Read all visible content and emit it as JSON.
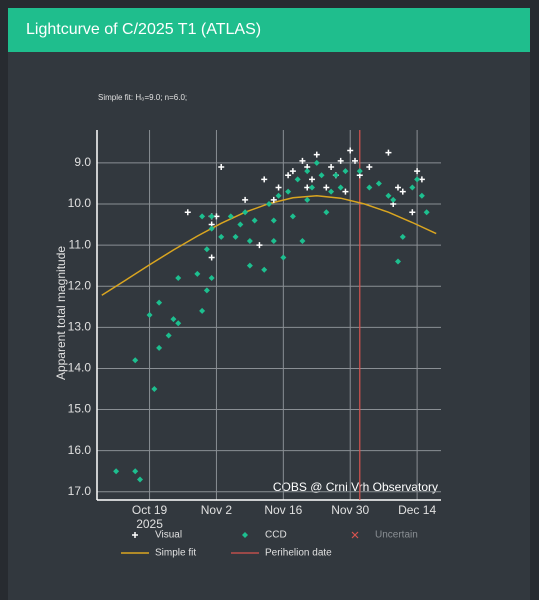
{
  "header": {
    "title": "Lightcurve of C/2025 T1 (ATLAS)"
  },
  "chart_data": {
    "type": "scatter",
    "annotation": "Simple fit: H₀=9.0; n=6.0;",
    "source_note": "COBS @ Crni Vrh Observatory",
    "y_label": "Apparent total magnitude",
    "xlim": [
      "2025-10-08",
      "2025-12-19"
    ],
    "xticks": [
      {
        "value": "2025-10-19",
        "label": "Oct 19"
      },
      {
        "value": "2025-11-02",
        "label": "Nov 2"
      },
      {
        "value": "2025-11-16",
        "label": "Nov 16"
      },
      {
        "value": "2025-11-30",
        "label": "Nov 30"
      },
      {
        "value": "2025-12-14",
        "label": "Dec 14"
      }
    ],
    "x_tick_year": "2025",
    "ylim": [
      17.2,
      8.2
    ],
    "yticks": [
      {
        "value": 9,
        "label": "9.0"
      },
      {
        "value": 10,
        "label": "10.0"
      },
      {
        "value": 11,
        "label": "11.0"
      },
      {
        "value": 12,
        "label": "12.0"
      },
      {
        "value": 13,
        "label": "13.0"
      },
      {
        "value": 14,
        "label": "14.0"
      },
      {
        "value": 15,
        "label": "15.0"
      },
      {
        "value": 16,
        "label": "16.0"
      },
      {
        "value": 17,
        "label": "17.0"
      }
    ],
    "grid": true,
    "series": [
      {
        "name": "Visual",
        "color": "#ffffff",
        "marker": "plus",
        "x": [
          "2025-10-27",
          "2025-11-01",
          "2025-11-01",
          "2025-11-02",
          "2025-11-03",
          "2025-11-01",
          "2025-11-08",
          "2025-11-11",
          "2025-11-12",
          "2025-11-14",
          "2025-11-15",
          "2025-11-17",
          "2025-11-18",
          "2025-11-20",
          "2025-11-21",
          "2025-11-21",
          "2025-11-22",
          "2025-11-23",
          "2025-11-25",
          "2025-11-26",
          "2025-11-27",
          "2025-11-28",
          "2025-11-29",
          "2025-11-30",
          "2025-12-01",
          "2025-12-02",
          "2025-12-04",
          "2025-12-08",
          "2025-12-09",
          "2025-12-10",
          "2025-12-11",
          "2025-12-13",
          "2025-12-14",
          "2025-12-15"
        ],
        "values": [
          10.2,
          10.5,
          10.3,
          10.3,
          9.1,
          11.3,
          9.9,
          11.0,
          9.4,
          9.9,
          9.6,
          9.3,
          9.2,
          8.95,
          9.6,
          9.1,
          9.4,
          8.8,
          9.6,
          9.1,
          9.3,
          8.95,
          9.7,
          8.7,
          8.95,
          9.3,
          9.1,
          8.75,
          10.0,
          9.6,
          9.7,
          10.2,
          9.2,
          9.4
        ]
      },
      {
        "name": "CCD",
        "color": "#1dbf8f",
        "marker": "diamond",
        "x": [
          "2025-10-12",
          "2025-10-16",
          "2025-10-17",
          "2025-10-16",
          "2025-10-19",
          "2025-10-20",
          "2025-10-21",
          "2025-10-21",
          "2025-10-23",
          "2025-10-24",
          "2025-10-25",
          "2025-10-25",
          "2025-10-29",
          "2025-10-30",
          "2025-10-31",
          "2025-11-01",
          "2025-10-31",
          "2025-10-30",
          "2025-11-01",
          "2025-11-01",
          "2025-11-03",
          "2025-11-05",
          "2025-11-06",
          "2025-11-07",
          "2025-11-08",
          "2025-11-09",
          "2025-11-09",
          "2025-11-10",
          "2025-11-12",
          "2025-11-13",
          "2025-11-14",
          "2025-11-14",
          "2025-11-15",
          "2025-11-16",
          "2025-11-17",
          "2025-11-18",
          "2025-11-19",
          "2025-11-20",
          "2025-11-21",
          "2025-11-21",
          "2025-11-22",
          "2025-11-23",
          "2025-11-24",
          "2025-11-25",
          "2025-11-26",
          "2025-11-27",
          "2025-11-28",
          "2025-11-29",
          "2025-12-02",
          "2025-12-04",
          "2025-12-06",
          "2025-12-08",
          "2025-12-09",
          "2025-12-10",
          "2025-12-11",
          "2025-12-13",
          "2025-12-14",
          "2025-12-15",
          "2025-12-16"
        ],
        "values": [
          16.5,
          16.5,
          16.7,
          13.8,
          12.7,
          14.5,
          13.5,
          12.4,
          13.2,
          12.8,
          12.9,
          11.8,
          11.7,
          12.6,
          12.1,
          11.8,
          11.1,
          10.3,
          10.6,
          10.3,
          10.8,
          10.3,
          10.8,
          10.5,
          10.2,
          10.9,
          11.5,
          10.4,
          11.6,
          10.0,
          10.9,
          10.4,
          9.8,
          11.3,
          9.7,
          10.3,
          9.4,
          10.9,
          9.2,
          9.9,
          9.6,
          9.0,
          9.3,
          10.2,
          9.7,
          9.3,
          9.6,
          9.2,
          9.2,
          9.6,
          9.5,
          9.8,
          9.9,
          11.4,
          10.8,
          9.6,
          9.4,
          9.8,
          10.2
        ]
      },
      {
        "name": "Uncertain",
        "color": "#d9534f",
        "marker": "cross",
        "x": [],
        "values": []
      }
    ],
    "fit": {
      "name": "Simple fit",
      "color": "#d9a520",
      "x": [
        "2025-10-09",
        "2025-10-14",
        "2025-10-19",
        "2025-10-24",
        "2025-10-29",
        "2025-11-03",
        "2025-11-08",
        "2025-11-13",
        "2025-11-18",
        "2025-11-23",
        "2025-11-28",
        "2025-12-03",
        "2025-12-08",
        "2025-12-13",
        "2025-12-18"
      ],
      "values": [
        12.22,
        11.85,
        11.48,
        11.12,
        10.78,
        10.47,
        10.2,
        9.99,
        9.85,
        9.8,
        9.86,
        10.0,
        10.2,
        10.45,
        10.72
      ]
    },
    "perihelion": {
      "name": "Perihelion date",
      "color": "#d9534f",
      "x": "2025-12-02"
    }
  }
}
